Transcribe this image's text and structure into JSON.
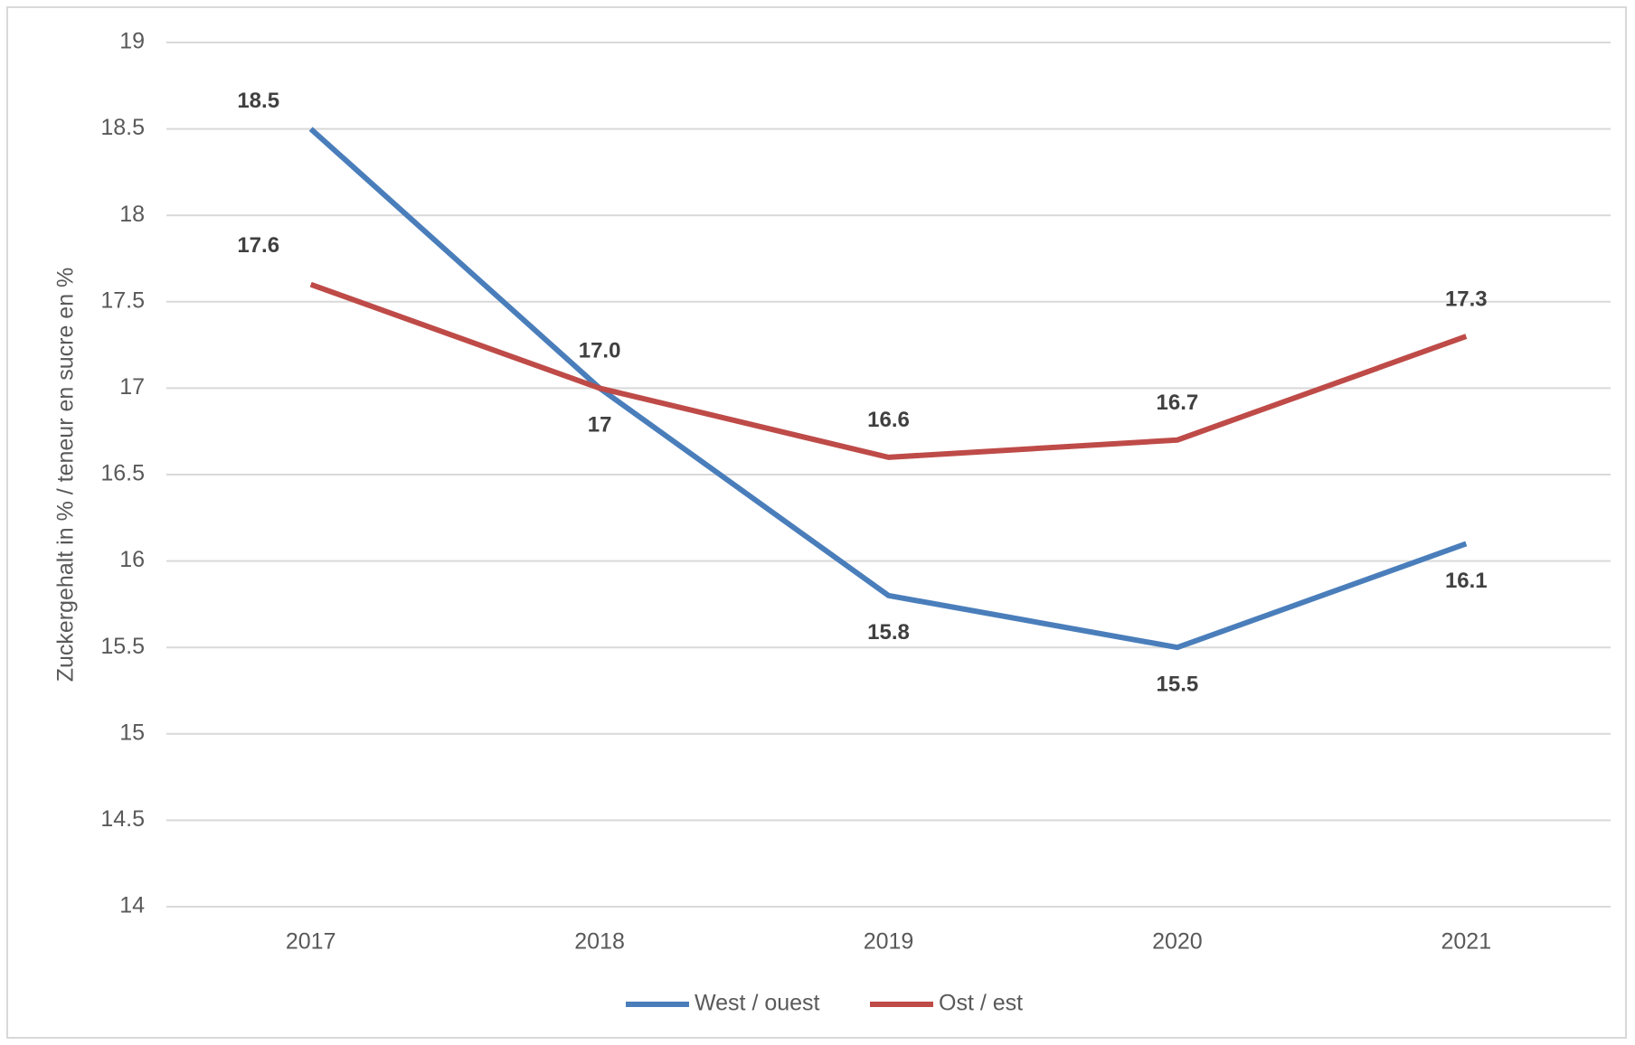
{
  "chart_data": {
    "type": "line",
    "y_label": "Zuckergehalt in % / teneur en sucre en %",
    "categories": [
      "2017",
      "2018",
      "2019",
      "2020",
      "2021"
    ],
    "series": [
      {
        "name": "West / ouest",
        "color": "#4a7ebb",
        "values": [
          18.5,
          17,
          15.8,
          15.5,
          16.1
        ]
      },
      {
        "name": "Ost / est",
        "color": "#be4b48",
        "values": [
          17.6,
          17.0,
          16.6,
          16.7,
          17.3
        ],
        "value_labels": [
          "17.6",
          "17.0",
          "16.6",
          "16.7",
          "17.3"
        ]
      }
    ],
    "ylim": [
      14,
      19
    ],
    "yticks": [
      14,
      14.5,
      15,
      15.5,
      16,
      16.5,
      17,
      17.5,
      18,
      18.5,
      19
    ],
    "grid": true,
    "legend": "bottom"
  }
}
